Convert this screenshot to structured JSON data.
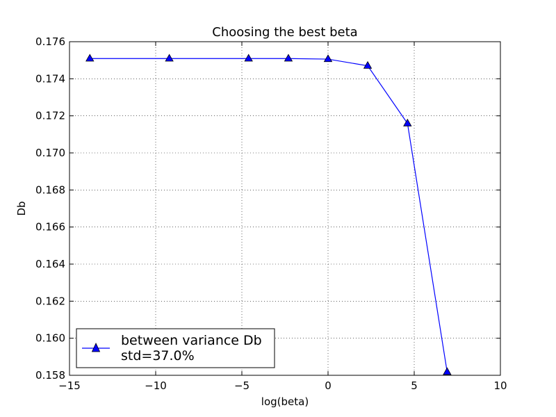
{
  "chart_data": {
    "type": "line",
    "title": "Choosing the best beta",
    "xlabel": "log(beta)",
    "ylabel": "Db",
    "xlim": [
      -15,
      10
    ],
    "ylim": [
      0.158,
      0.176
    ],
    "x_ticks": [
      -15,
      -10,
      -5,
      0,
      5,
      10
    ],
    "y_ticks": [
      0.158,
      0.16,
      0.162,
      0.164,
      0.166,
      0.168,
      0.17,
      0.172,
      0.174,
      0.176
    ],
    "x_tick_labels": [
      "−15",
      "−10",
      "−5",
      "0",
      "5",
      "10"
    ],
    "y_tick_labels": [
      "0.158",
      "0.160",
      "0.162",
      "0.164",
      "0.166",
      "0.168",
      "0.170",
      "0.172",
      "0.174",
      "0.176"
    ],
    "grid": true,
    "legend_position": "lower-left",
    "series": [
      {
        "name": "between variance Db\nstd=37.0%",
        "legend_lines": [
          "between variance Db",
          "std=37.0%"
        ],
        "color": "#0000ff",
        "marker": "triangle-up",
        "x": [
          -13.82,
          -9.21,
          -4.61,
          -2.3,
          0.0,
          2.3,
          4.61,
          6.91
        ],
        "y": [
          0.17509,
          0.17509,
          0.17509,
          0.17509,
          0.17506,
          0.1747,
          0.17159,
          0.15818
        ]
      }
    ]
  }
}
